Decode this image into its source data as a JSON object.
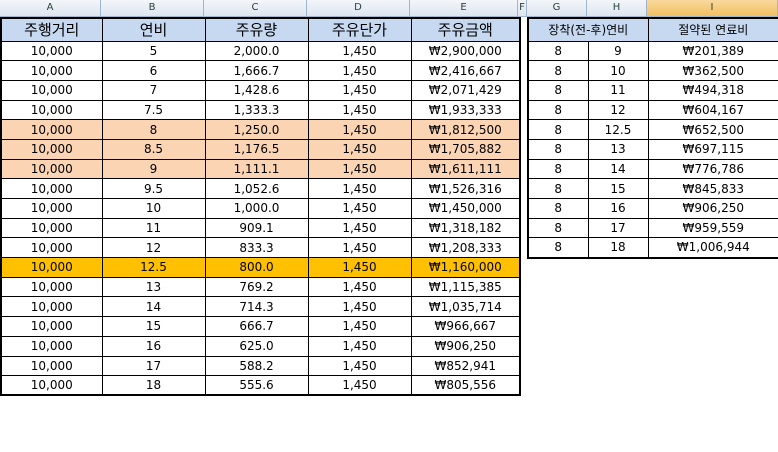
{
  "column_letters": [
    "A",
    "B",
    "C",
    "D",
    "E",
    "F",
    "G",
    "H",
    "I"
  ],
  "left_table": {
    "headers": [
      "주행거리",
      "연비",
      "주유량",
      "주유단가",
      "주유금액"
    ],
    "rows": [
      {
        "cells": [
          "10,000",
          "5",
          "2,000.0",
          "1,450",
          "₩2,900,000"
        ],
        "highlight": ""
      },
      {
        "cells": [
          "10,000",
          "6",
          "1,666.7",
          "1,450",
          "₩2,416,667"
        ],
        "highlight": ""
      },
      {
        "cells": [
          "10,000",
          "7",
          "1,428.6",
          "1,450",
          "₩2,071,429"
        ],
        "highlight": ""
      },
      {
        "cells": [
          "10,000",
          "7.5",
          "1,333.3",
          "1,450",
          "₩1,933,333"
        ],
        "highlight": ""
      },
      {
        "cells": [
          "10,000",
          "8",
          "1,250.0",
          "1,450",
          "₩1,812,500"
        ],
        "highlight": "peach"
      },
      {
        "cells": [
          "10,000",
          "8.5",
          "1,176.5",
          "1,450",
          "₩1,705,882"
        ],
        "highlight": "peach"
      },
      {
        "cells": [
          "10,000",
          "9",
          "1,111.1",
          "1,450",
          "₩1,611,111"
        ],
        "highlight": "peach"
      },
      {
        "cells": [
          "10,000",
          "9.5",
          "1,052.6",
          "1,450",
          "₩1,526,316"
        ],
        "highlight": ""
      },
      {
        "cells": [
          "10,000",
          "10",
          "1,000.0",
          "1,450",
          "₩1,450,000"
        ],
        "highlight": ""
      },
      {
        "cells": [
          "10,000",
          "11",
          "909.1",
          "1,450",
          "₩1,318,182"
        ],
        "highlight": ""
      },
      {
        "cells": [
          "10,000",
          "12",
          "833.3",
          "1,450",
          "₩1,208,333"
        ],
        "highlight": ""
      },
      {
        "cells": [
          "10,000",
          "12.5",
          "800.0",
          "1,450",
          "₩1,160,000"
        ],
        "highlight": "gold"
      },
      {
        "cells": [
          "10,000",
          "13",
          "769.2",
          "1,450",
          "₩1,115,385"
        ],
        "highlight": ""
      },
      {
        "cells": [
          "10,000",
          "14",
          "714.3",
          "1,450",
          "₩1,035,714"
        ],
        "highlight": ""
      },
      {
        "cells": [
          "10,000",
          "15",
          "666.7",
          "1,450",
          "₩966,667"
        ],
        "highlight": ""
      },
      {
        "cells": [
          "10,000",
          "16",
          "625.0",
          "1,450",
          "₩906,250"
        ],
        "highlight": ""
      },
      {
        "cells": [
          "10,000",
          "17",
          "588.2",
          "1,450",
          "₩852,941"
        ],
        "highlight": ""
      },
      {
        "cells": [
          "10,000",
          "18",
          "555.6",
          "1,450",
          "₩805,556"
        ],
        "highlight": ""
      }
    ]
  },
  "right_table": {
    "header_combined": "장착(전-후)연비",
    "header_saved": "절약된 연료비",
    "rows": [
      [
        "8",
        "9",
        "₩201,389"
      ],
      [
        "8",
        "10",
        "₩362,500"
      ],
      [
        "8",
        "11",
        "₩494,318"
      ],
      [
        "8",
        "12",
        "₩604,167"
      ],
      [
        "8",
        "12.5",
        "₩652,500"
      ],
      [
        "8",
        "13",
        "₩697,115"
      ],
      [
        "8",
        "14",
        "₩776,786"
      ],
      [
        "8",
        "15",
        "₩845,833"
      ],
      [
        "8",
        "16",
        "₩906,250"
      ],
      [
        "8",
        "17",
        "₩959,559"
      ],
      [
        "8",
        "18",
        "₩1,006,944"
      ]
    ]
  },
  "colors": {
    "header_blue": "#c6d9f1",
    "peach": "#fbd4b4",
    "gold": "#ffc000",
    "active_column": "#f1c15f"
  }
}
